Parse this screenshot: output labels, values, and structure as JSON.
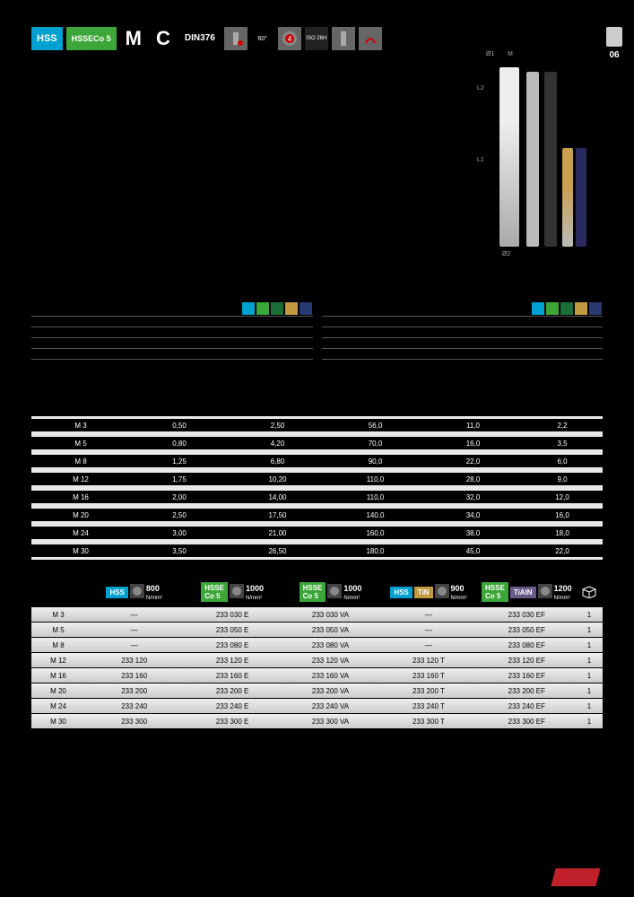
{
  "page_number": "06",
  "header": {
    "badges": {
      "hss": "HSS",
      "hsse_line1": "HSSE",
      "hsse_line2": "Co 5",
      "letter_m": "M",
      "letter_c": "C",
      "din_line1": "DIN",
      "din_line2": "376",
      "angle": "60°",
      "circ": "4",
      "iso_line1": "ISO 2",
      "iso_line2": "6H"
    }
  },
  "diagram_labels": {
    "l1": "L1",
    "l2": "L2",
    "d1": "Ø1",
    "d2": "Ø2",
    "m": "M"
  },
  "swatch_colors": [
    "#00a0d0",
    "#3da639",
    "#1a6e36",
    "#c49a40",
    "#283870"
  ],
  "dim_table": {
    "rows": [
      {
        "size": "M  3",
        "p": "0,50",
        "d": "2,50",
        "l1": "56,0",
        "l2": "11,0",
        "sq": "2,2"
      },
      {
        "size": "M  5",
        "p": "0,80",
        "d": "4,20",
        "l1": "70,0",
        "l2": "16,0",
        "sq": "3,5"
      },
      {
        "size": "M  8",
        "p": "1,25",
        "d": "6,80",
        "l1": "90,0",
        "l2": "22,0",
        "sq": "6,0"
      },
      {
        "size": "M 12",
        "p": "1,75",
        "d": "10,20",
        "l1": "110,0",
        "l2": "28,0",
        "sq": "9,0"
      },
      {
        "size": "M 16",
        "p": "2,00",
        "d": "14,00",
        "l1": "110,0",
        "l2": "32,0",
        "sq": "12,0"
      },
      {
        "size": "M 20",
        "p": "2,50",
        "d": "17,50",
        "l1": "140,0",
        "l2": "34,0",
        "sq": "16,0"
      },
      {
        "size": "M 24",
        "p": "3,00",
        "d": "21,00",
        "l1": "160,0",
        "l2": "38,0",
        "sq": "18,0"
      },
      {
        "size": "M 30",
        "p": "3,50",
        "d": "26,50",
        "l1": "180,0",
        "l2": "45,0",
        "sq": "22,0"
      }
    ]
  },
  "order_head": {
    "groups": [
      {
        "badge": "HSS",
        "badge_bg": "#00a0d0",
        "val": "800",
        "unit": "N/mm²"
      },
      {
        "badge": "HSSE",
        "badge2": "Co 5",
        "badge_bg": "#3da639",
        "val": "1000",
        "unit": "N/mm²"
      },
      {
        "badge": "HSSE",
        "badge2": "Co 5",
        "badge_bg": "#3da639",
        "val": "1000",
        "unit": "N/mm²"
      },
      {
        "badge": "HSS",
        "badge_bg": "#00a0d0",
        "badge_extra": "TiN",
        "badge_extra_bg": "#c49a40",
        "val": "900",
        "unit": "N/mm²"
      },
      {
        "badge": "HSSE",
        "badge2": "Co 5",
        "badge_bg": "#3da639",
        "badge_extra": "TiAlN",
        "badge_extra_bg": "#6a5a8a",
        "val": "1200",
        "unit": "N/mm²"
      }
    ]
  },
  "order_table": {
    "rows": [
      {
        "size": "M  3",
        "c1": "—",
        "c2": "233 030 E",
        "c3": "233 030 VA",
        "c4": "—",
        "c5": "233 030 EF",
        "pack": "1"
      },
      {
        "size": "M  5",
        "c1": "—",
        "c2": "233 050 E",
        "c3": "233 050 VA",
        "c4": "—",
        "c5": "233 050 EF",
        "pack": "1"
      },
      {
        "size": "M  8",
        "c1": "—",
        "c2": "233 080 E",
        "c3": "233 080 VA",
        "c4": "—",
        "c5": "233 080 EF",
        "pack": "1"
      },
      {
        "size": "M 12",
        "c1": "233 120",
        "c2": "233 120 E",
        "c3": "233 120 VA",
        "c4": "233 120 T",
        "c5": "233 120 EF",
        "pack": "1"
      },
      {
        "size": "M 16",
        "c1": "233 160",
        "c2": "233 160 E",
        "c3": "233 160 VA",
        "c4": "233 160 T",
        "c5": "233 160 EF",
        "pack": "1"
      },
      {
        "size": "M 20",
        "c1": "233 200",
        "c2": "233 200 E",
        "c3": "233 200 VA",
        "c4": "233 200 T",
        "c5": "233 200 EF",
        "pack": "1"
      },
      {
        "size": "M 24",
        "c1": "233 240",
        "c2": "233 240 E",
        "c3": "233 240 VA",
        "c4": "233 240 T",
        "c5": "233 240 EF",
        "pack": "1"
      },
      {
        "size": "M 30",
        "c1": "233 300",
        "c2": "233 300 E",
        "c3": "233 300 VA",
        "c4": "233 300 T",
        "c5": "233 300 EF",
        "pack": "1"
      }
    ]
  }
}
